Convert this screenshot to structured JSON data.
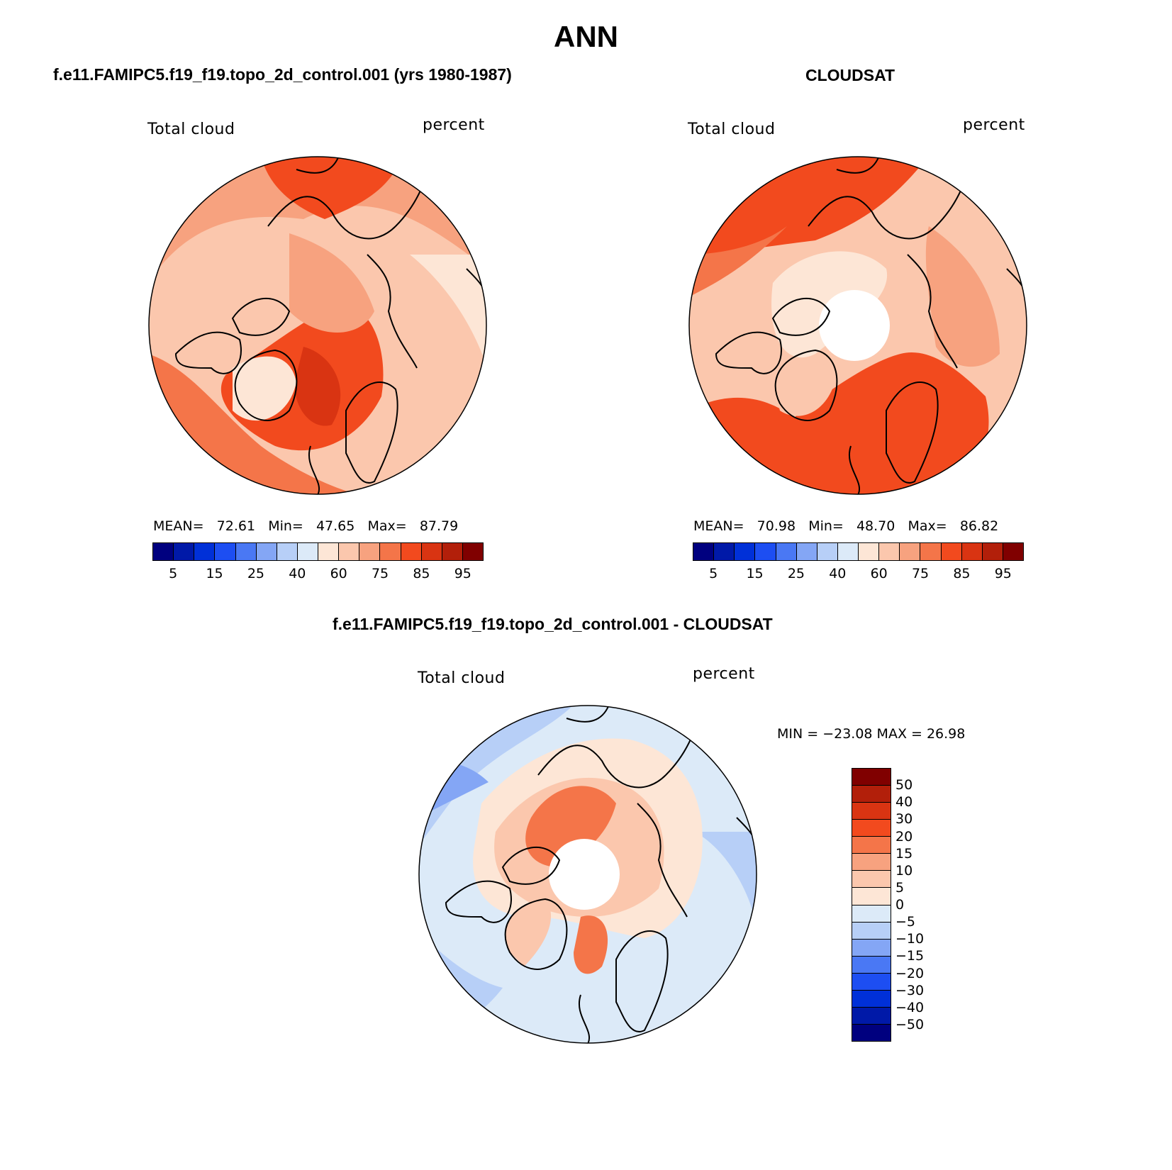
{
  "main_title": "ANN",
  "panels": [
    {
      "subtitle": "f.e11.FAMIPC5.f19_f19.topo_2d_control.001 (yrs 1980-1987)",
      "left_label": "Total cloud",
      "right_label": "percent",
      "stats": {
        "mean_label": "MEAN=",
        "mean": "72.61",
        "min_label": "Min=",
        "min": "47.65",
        "max_label": "Max=",
        "max": "87.79"
      }
    },
    {
      "subtitle": "CLOUDSAT",
      "left_label": "Total cloud",
      "right_label": "percent",
      "stats": {
        "mean_label": "MEAN=",
        "mean": "70.98",
        "min_label": "Min=",
        "min": "48.70",
        "max_label": "Max=",
        "max": "86.82"
      }
    },
    {
      "subtitle": "f.e11.FAMIPC5.f19_f19.topo_2d_control.001 - CLOUDSAT",
      "left_label": "Total cloud",
      "right_label": "percent",
      "minmax": "MIN = −23.08 MAX =   26.98"
    }
  ],
  "colorbar_abs": {
    "colors": [
      "#00007f",
      "#0019a8",
      "#0030d8",
      "#1d4ef2",
      "#4a78f4",
      "#84a6f5",
      "#b7cff7",
      "#dceaf8",
      "#fde6d6",
      "#fbc7ad",
      "#f7a27f",
      "#f47549",
      "#f24a1e",
      "#d93412",
      "#b21f0a",
      "#800000"
    ],
    "ticks": [
      "5",
      "15",
      "25",
      "40",
      "60",
      "75",
      "85",
      "95"
    ]
  },
  "colorbar_diff": {
    "colors": [
      "#800000",
      "#b21f0a",
      "#d93412",
      "#f24a1e",
      "#f47549",
      "#f7a27f",
      "#fbc7ad",
      "#fde6d6",
      "#dceaf8",
      "#b7cff7",
      "#84a6f5",
      "#4a78f4",
      "#1d4ef2",
      "#0030d8",
      "#0019a8",
      "#00007f"
    ],
    "ticks": [
      "50",
      "40",
      "30",
      "20",
      "15",
      "10",
      "5",
      "0",
      "−5",
      "−10",
      "−15",
      "−20",
      "−30",
      "−40",
      "−50"
    ]
  }
}
